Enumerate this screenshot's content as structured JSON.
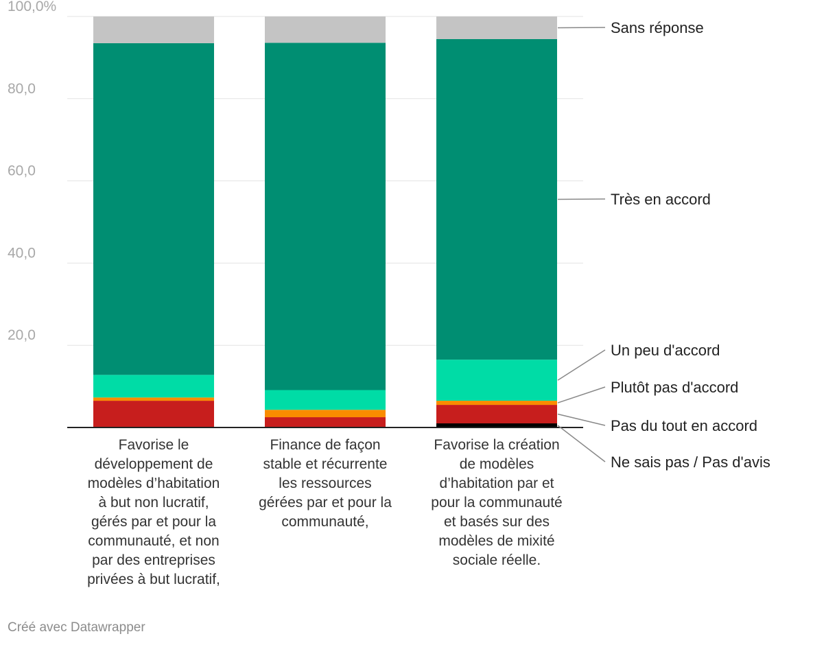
{
  "chart_data": {
    "type": "bar",
    "stacked": true,
    "title": "",
    "xlabel": "",
    "ylabel": "",
    "ylim": [
      0,
      100
    ],
    "yticks": [
      20,
      40,
      60,
      80,
      100
    ],
    "ytick_labels": [
      "20,0",
      "40,0",
      "60,0",
      "80,0",
      "100,0%"
    ],
    "grid": true,
    "legend": "right, labels aligned to segments",
    "categories": [
      [
        "Favorise le",
        "développement de",
        "modèles d’habitation",
        "à but non lucratif,",
        "gérés par et pour la",
        "communauté, et non",
        "par des entreprises",
        "privées à but lucratif,"
      ],
      [
        "Finance de façon",
        "stable et récurrente",
        "les ressources",
        "gérées par et pour la",
        "communauté,"
      ],
      [
        "Favorise la création",
        "de modèles",
        "d’habitation par et",
        "pour la communauté",
        "et basés sur des",
        "modèles de mixité",
        "sociale réelle."
      ]
    ],
    "series": [
      {
        "name": "Ne sais pas / Pas d'avis",
        "color": "#000000",
        "values": [
          0.0,
          0.0,
          1.0
        ]
      },
      {
        "name": "Pas du tout en accord",
        "color": "#c71e1d",
        "values": [
          6.5,
          2.5,
          4.5
        ]
      },
      {
        "name": "Plutôt pas d'accord",
        "color": "#fa8c00",
        "values": [
          0.8,
          1.8,
          1.0
        ]
      },
      {
        "name": "Un peu d'accord",
        "color": "#00dca6",
        "values": [
          5.5,
          4.8,
          10.0
        ]
      },
      {
        "name": "Très en accord",
        "color": "#008e72",
        "values": [
          80.7,
          84.5,
          78.0
        ]
      },
      {
        "name": "Sans réponse",
        "color": "#c4c4c4",
        "values": [
          6.5,
          6.4,
          5.5
        ]
      }
    ]
  },
  "footer": {
    "credit": "Créé avec Datawrapper"
  }
}
